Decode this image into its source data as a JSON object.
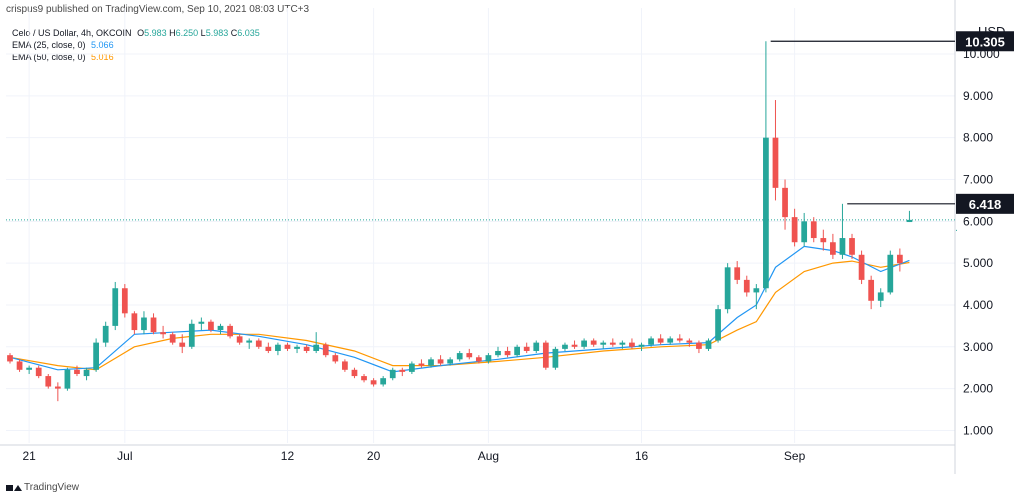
{
  "header": {
    "text": "crispus9 published on TradingView.com, Sep 10, 2021 08:03 UTC+3"
  },
  "legend": {
    "symbol_line": "Celo / US Dollar, 4h, OKCOIN",
    "ohlc": {
      "o_label": "O",
      "o": "5.983",
      "h_label": "H",
      "h": "6.250",
      "l_label": "L",
      "l": "5.983",
      "c_label": "C",
      "c": "6.035"
    },
    "ema25": {
      "label": "EMA (25, close, 0)",
      "value": "5.066"
    },
    "ema50": {
      "label": "EMA (50, close, 0)",
      "value": "5.016"
    }
  },
  "footer": {
    "brand": "TradingView"
  },
  "colors": {
    "up": "#26a69a",
    "down": "#ef5350",
    "ema25": "#2196f3",
    "ema50": "#ff9800",
    "grid": "#f0f3fa",
    "axis_text": "#131722",
    "price_line": "#26a69a"
  },
  "chart_data": {
    "type": "candlestick",
    "currency": "USD",
    "ylim": [
      0.7,
      11.1
    ],
    "y_ticks": [
      "1.000",
      "2.000",
      "3.000",
      "4.000",
      "5.000",
      "6.000",
      "7.000",
      "8.000",
      "9.000",
      "10.000"
    ],
    "x_tick_labels": [
      {
        "label": "21",
        "day": 2
      },
      {
        "label": "Jul",
        "day": 12
      },
      {
        "label": "12",
        "day": 29
      },
      {
        "label": "20",
        "day": 38
      },
      {
        "label": "Aug",
        "day": 50
      },
      {
        "label": "16",
        "day": 66
      },
      {
        "label": "Sep",
        "day": 82
      }
    ],
    "x_range_days": [
      0,
      95
    ],
    "annotations": [
      {
        "label": "10.305",
        "price": 10.305,
        "from_day": 79.5,
        "box": "dark"
      },
      {
        "label": "6.418",
        "price": 6.418,
        "from_day": 87.5,
        "box": "dark"
      }
    ],
    "current_price": 6.035,
    "candles": [
      [
        0,
        2.8,
        2.85,
        2.6,
        2.65
      ],
      [
        1,
        2.65,
        2.7,
        2.4,
        2.45
      ],
      [
        2,
        2.45,
        2.55,
        2.35,
        2.5
      ],
      [
        3,
        2.5,
        2.55,
        2.25,
        2.3
      ],
      [
        4,
        2.3,
        2.35,
        2.0,
        2.05
      ],
      [
        5,
        2.05,
        2.15,
        1.7,
        2.0
      ],
      [
        6,
        2.0,
        2.5,
        1.95,
        2.45
      ],
      [
        7,
        2.45,
        2.55,
        2.3,
        2.35
      ],
      [
        8,
        2.3,
        2.5,
        2.2,
        2.45
      ],
      [
        9,
        2.45,
        3.2,
        2.4,
        3.1
      ],
      [
        10,
        3.1,
        3.6,
        3.0,
        3.5
      ],
      [
        11,
        3.5,
        4.55,
        3.4,
        4.4
      ],
      [
        12,
        4.4,
        4.5,
        3.7,
        3.8
      ],
      [
        13,
        3.8,
        3.85,
        3.3,
        3.4
      ],
      [
        14,
        3.4,
        3.85,
        3.3,
        3.7
      ],
      [
        15,
        3.7,
        3.8,
        3.3,
        3.35
      ],
      [
        16,
        3.35,
        3.5,
        3.2,
        3.3
      ],
      [
        17,
        3.3,
        3.35,
        3.05,
        3.1
      ],
      [
        18,
        3.1,
        3.3,
        2.85,
        3.0
      ],
      [
        19,
        3.0,
        3.65,
        2.95,
        3.55
      ],
      [
        20,
        3.55,
        3.7,
        3.4,
        3.6
      ],
      [
        21,
        3.6,
        3.65,
        3.35,
        3.4
      ],
      [
        22,
        3.4,
        3.55,
        3.3,
        3.5
      ],
      [
        23,
        3.5,
        3.55,
        3.2,
        3.25
      ],
      [
        24,
        3.25,
        3.3,
        3.05,
        3.1
      ],
      [
        25,
        3.1,
        3.2,
        2.95,
        3.15
      ],
      [
        26,
        3.15,
        3.2,
        2.95,
        3.0
      ],
      [
        27,
        3.0,
        3.1,
        2.85,
        2.9
      ],
      [
        28,
        2.9,
        3.1,
        2.8,
        3.05
      ],
      [
        29,
        3.05,
        3.1,
        2.9,
        2.95
      ],
      [
        30,
        2.95,
        3.05,
        2.85,
        3.0
      ],
      [
        31,
        3.0,
        3.05,
        2.85,
        2.9
      ],
      [
        32,
        2.9,
        3.35,
        2.85,
        3.05
      ],
      [
        33,
        3.05,
        3.1,
        2.75,
        2.8
      ],
      [
        34,
        2.8,
        2.85,
        2.6,
        2.65
      ],
      [
        35,
        2.65,
        2.7,
        2.4,
        2.45
      ],
      [
        36,
        2.45,
        2.5,
        2.25,
        2.3
      ],
      [
        37,
        2.3,
        2.35,
        2.15,
        2.2
      ],
      [
        38,
        2.2,
        2.25,
        2.05,
        2.1
      ],
      [
        39,
        2.1,
        2.3,
        2.05,
        2.25
      ],
      [
        40,
        2.25,
        2.5,
        2.2,
        2.45
      ],
      [
        41,
        2.45,
        2.5,
        2.3,
        2.4
      ],
      [
        42,
        2.4,
        2.65,
        2.35,
        2.6
      ],
      [
        43,
        2.6,
        2.7,
        2.5,
        2.55
      ],
      [
        44,
        2.55,
        2.75,
        2.5,
        2.7
      ],
      [
        45,
        2.7,
        2.8,
        2.55,
        2.6
      ],
      [
        46,
        2.6,
        2.75,
        2.55,
        2.7
      ],
      [
        47,
        2.7,
        2.9,
        2.65,
        2.85
      ],
      [
        48,
        2.85,
        2.95,
        2.7,
        2.75
      ],
      [
        49,
        2.75,
        2.8,
        2.6,
        2.65
      ],
      [
        50,
        2.65,
        2.85,
        2.6,
        2.8
      ],
      [
        51,
        2.8,
        3.0,
        2.75,
        2.9
      ],
      [
        52,
        2.9,
        3.0,
        2.75,
        2.8
      ],
      [
        53,
        2.8,
        3.05,
        2.75,
        3.0
      ],
      [
        54,
        3.0,
        3.1,
        2.85,
        2.9
      ],
      [
        55,
        2.9,
        3.15,
        2.85,
        3.1
      ],
      [
        56,
        3.1,
        3.15,
        2.45,
        2.5
      ],
      [
        57,
        2.5,
        3.0,
        2.45,
        2.95
      ],
      [
        58,
        2.95,
        3.1,
        2.9,
        3.05
      ],
      [
        59,
        3.05,
        3.15,
        2.95,
        3.0
      ],
      [
        60,
        3.0,
        3.2,
        2.95,
        3.15
      ],
      [
        61,
        3.15,
        3.2,
        3.0,
        3.05
      ],
      [
        62,
        3.05,
        3.15,
        2.95,
        3.1
      ],
      [
        63,
        3.1,
        3.2,
        3.0,
        3.05
      ],
      [
        64,
        3.05,
        3.15,
        2.95,
        3.1
      ],
      [
        65,
        3.1,
        3.2,
        2.95,
        3.0
      ],
      [
        66,
        3.0,
        3.1,
        2.9,
        3.05
      ],
      [
        67,
        3.05,
        3.25,
        3.0,
        3.2
      ],
      [
        68,
        3.2,
        3.3,
        3.05,
        3.1
      ],
      [
        69,
        3.1,
        3.25,
        3.05,
        3.2
      ],
      [
        70,
        3.2,
        3.3,
        3.1,
        3.15
      ],
      [
        71,
        3.15,
        3.2,
        3.0,
        3.1
      ],
      [
        72,
        3.1,
        3.15,
        2.85,
        2.95
      ],
      [
        73,
        2.95,
        3.2,
        2.9,
        3.15
      ],
      [
        74,
        3.15,
        4.0,
        3.1,
        3.9
      ],
      [
        75,
        3.9,
        5.0,
        3.8,
        4.9
      ],
      [
        76,
        4.9,
        5.05,
        4.5,
        4.6
      ],
      [
        77,
        4.6,
        4.7,
        4.2,
        4.3
      ],
      [
        78,
        4.3,
        4.5,
        3.9,
        4.4
      ],
      [
        79,
        4.4,
        10.305,
        4.3,
        8.0
      ],
      [
        80,
        8.0,
        8.9,
        6.5,
        6.8
      ],
      [
        81,
        6.8,
        7.0,
        5.8,
        6.1
      ],
      [
        82,
        6.1,
        6.3,
        5.4,
        5.5
      ],
      [
        83,
        5.5,
        6.2,
        5.4,
        6.0
      ],
      [
        84,
        6.0,
        6.1,
        5.5,
        5.6
      ],
      [
        85,
        5.6,
        5.8,
        5.3,
        5.5
      ],
      [
        86,
        5.5,
        5.7,
        5.1,
        5.2
      ],
      [
        87,
        5.2,
        6.418,
        5.1,
        5.6
      ],
      [
        88,
        5.6,
        5.7,
        5.1,
        5.2
      ],
      [
        89,
        5.2,
        5.3,
        4.5,
        4.6
      ],
      [
        90,
        4.6,
        4.7,
        3.9,
        4.1
      ],
      [
        91,
        4.1,
        4.4,
        3.95,
        4.3
      ],
      [
        92,
        4.3,
        5.3,
        4.25,
        5.2
      ],
      [
        93,
        5.2,
        5.35,
        4.8,
        5.0
      ],
      [
        94,
        5.983,
        6.25,
        5.983,
        6.035
      ]
    ],
    "ema25": [
      [
        0,
        2.75
      ],
      [
        5,
        2.45
      ],
      [
        9,
        2.5
      ],
      [
        13,
        3.3
      ],
      [
        17,
        3.35
      ],
      [
        21,
        3.4
      ],
      [
        26,
        3.25
      ],
      [
        31,
        3.05
      ],
      [
        36,
        2.75
      ],
      [
        40,
        2.4
      ],
      [
        45,
        2.55
      ],
      [
        51,
        2.7
      ],
      [
        56,
        2.85
      ],
      [
        62,
        2.95
      ],
      [
        68,
        3.05
      ],
      [
        73,
        3.1
      ],
      [
        76,
        3.7
      ],
      [
        78,
        4.0
      ],
      [
        80,
        4.9
      ],
      [
        83,
        5.4
      ],
      [
        86,
        5.3
      ],
      [
        88,
        5.15
      ],
      [
        91,
        4.8
      ],
      [
        94,
        5.066
      ]
    ],
    "ema50": [
      [
        0,
        2.75
      ],
      [
        5,
        2.55
      ],
      [
        9,
        2.45
      ],
      [
        13,
        3.0
      ],
      [
        17,
        3.2
      ],
      [
        21,
        3.3
      ],
      [
        26,
        3.3
      ],
      [
        31,
        3.15
      ],
      [
        36,
        2.9
      ],
      [
        40,
        2.55
      ],
      [
        45,
        2.55
      ],
      [
        51,
        2.65
      ],
      [
        56,
        2.75
      ],
      [
        62,
        2.9
      ],
      [
        68,
        3.0
      ],
      [
        73,
        3.05
      ],
      [
        76,
        3.4
      ],
      [
        78,
        3.6
      ],
      [
        80,
        4.3
      ],
      [
        83,
        4.8
      ],
      [
        86,
        5.0
      ],
      [
        88,
        5.05
      ],
      [
        91,
        4.9
      ],
      [
        94,
        5.016
      ]
    ]
  }
}
